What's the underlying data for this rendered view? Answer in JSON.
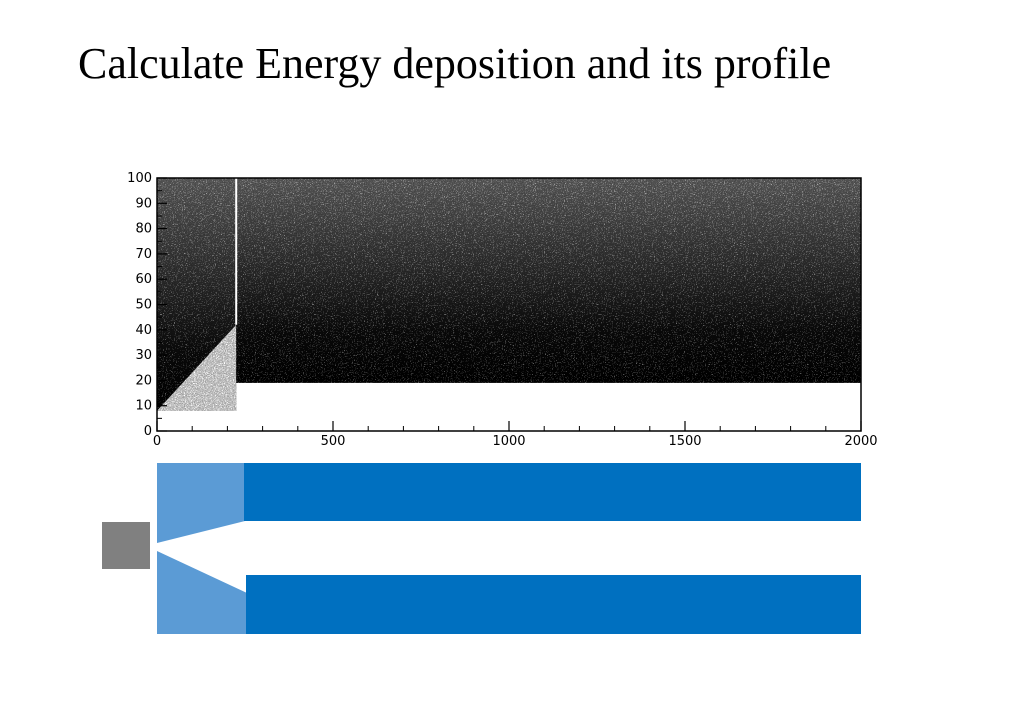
{
  "slide": {
    "title": "Calculate Energy deposition and its profile"
  },
  "colors": {
    "background": "#ffffff",
    "scatter_fill": "#000000",
    "channel_dark": "#0070c0",
    "channel_light": "#5b9bd5",
    "source_box": "#808080"
  },
  "chart_data": {
    "type": "scatter",
    "title": "",
    "xlabel": "",
    "ylabel": "",
    "xlim": [
      0,
      2000
    ],
    "ylim": [
      0,
      100
    ],
    "x_ticks": [
      0,
      500,
      1000,
      1500,
      2000
    ],
    "y_ticks": [
      0,
      10,
      20,
      30,
      40,
      50,
      60,
      70,
      80,
      90,
      100
    ],
    "x_tick_labels": [
      "0",
      "500",
      "1000",
      "1500",
      "2000"
    ],
    "y_tick_labels": [
      "0",
      "10",
      "20",
      "30",
      "40",
      "50",
      "60",
      "70",
      "80",
      "90",
      "100"
    ],
    "grid": false,
    "density_regions": [
      {
        "name": "cone",
        "x_start": 0,
        "x_end": 225,
        "y_min_at_start": 8,
        "y_min_at_end": 42,
        "y_max": 100
      },
      {
        "name": "channel",
        "x_start": 225,
        "x_end": 2000,
        "y_min": 19,
        "y_max": 100
      }
    ],
    "boundary_line_x": 225
  },
  "geometry": {
    "source_label": "",
    "description_shapes": [
      "source-box",
      "cone-upper",
      "cone-lower",
      "channel-upper-wall",
      "channel-lower-wall"
    ]
  }
}
